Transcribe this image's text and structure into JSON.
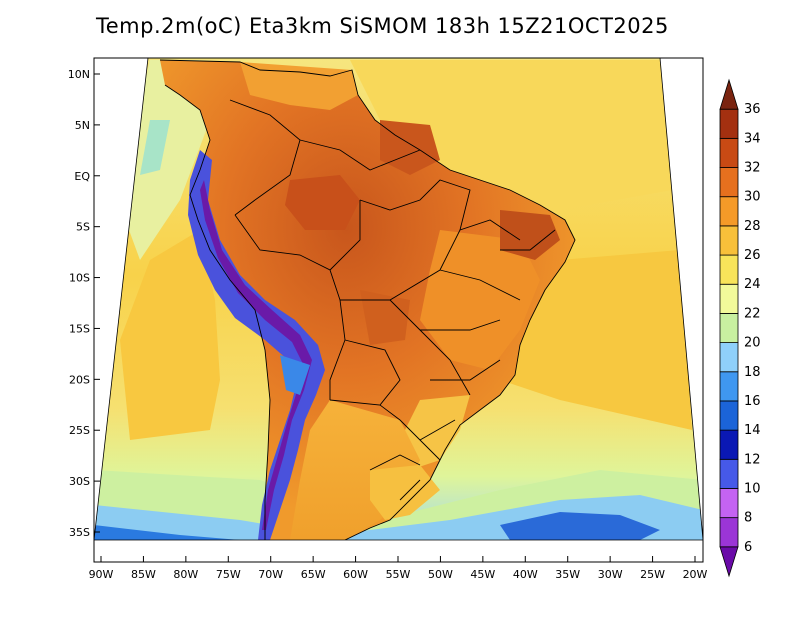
{
  "title": "Temp.2m(oC) Eta3km SiSMOM 183h 15Z21OCT2025",
  "map": {
    "variable": "2 m temperature",
    "unit": "oC",
    "region": "South America",
    "lon_labels": [
      "90W",
      "85W",
      "80W",
      "75W",
      "70W",
      "65W",
      "60W",
      "55W",
      "50W",
      "45W",
      "40W",
      "35W",
      "30W",
      "25W",
      "20W"
    ],
    "lat_labels": [
      "10N",
      "5N",
      "EQ",
      "5S",
      "10S",
      "15S",
      "20S",
      "25S",
      "30S",
      "35S"
    ]
  },
  "colorbar": {
    "levels": [
      "6",
      "8",
      "10",
      "12",
      "14",
      "16",
      "18",
      "20",
      "22",
      "24",
      "26",
      "28",
      "30",
      "32",
      "34",
      "36"
    ],
    "colors": [
      "#6a0aa8",
      "#9b35d6",
      "#c463f2",
      "#4659e8",
      "#0a18b4",
      "#1b64d8",
      "#3f97f0",
      "#8fd0fa",
      "#c8f0a0",
      "#f2fa9a",
      "#f8e45a",
      "#f8c03a",
      "#f59a28",
      "#e6701e",
      "#c84a14",
      "#a43010",
      "#7a2410"
    ]
  },
  "colors": {
    "ocean_warm": "#f8d24a",
    "ocean_mid": "#f6e670",
    "ocean_cool": "#e6f59a",
    "land_hot": "#e67a22",
    "land_very_hot": "#c85a1e",
    "andes_cold": "#5a2ab0",
    "border": "#000000"
  }
}
